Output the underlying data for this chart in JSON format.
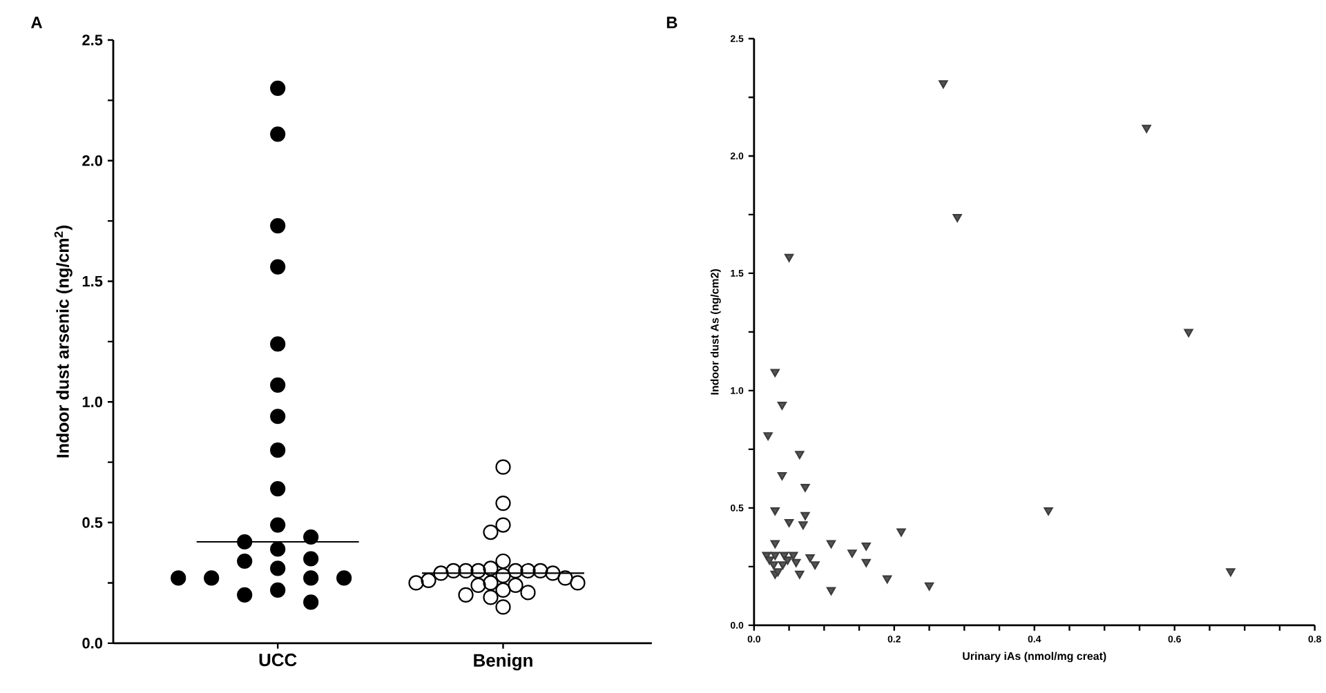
{
  "chart_data": [
    {
      "type": "scatter",
      "title": "A",
      "ylabel": "Indoor dust arsenic (ng/cm$^{2}$)",
      "categories": [
        "UCC",
        "Benign"
      ],
      "ylim": [
        0,
        2.5
      ],
      "yticks": [
        {
          "value": 0,
          "label": "0.0"
        },
        {
          "value": 0.25,
          "label": null
        },
        {
          "value": 0.5,
          "label": "0.5"
        },
        {
          "value": 0.75,
          "label": null
        },
        {
          "value": 1.0,
          "label": "1.0"
        },
        {
          "value": 1.25,
          "label": null
        },
        {
          "value": 1.5,
          "label": "1.5"
        },
        {
          "value": 1.75,
          "label": null
        },
        {
          "value": 2.0,
          "label": "2.0"
        },
        {
          "value": 2.25,
          "label": null
        },
        {
          "value": 2.5,
          "label": "2.5"
        }
      ],
      "series": [
        {
          "type": "scatter",
          "color": "#000000",
          "marker": "circle",
          "x": [
            "UCC",
            "UCC",
            "UCC",
            "UCC",
            "UCC",
            "UCC",
            "UCC",
            "UCC",
            "UCC",
            "UCC",
            "UCC",
            "UCC",
            "UCC",
            "UCC",
            "UCC",
            "UCC",
            "UCC",
            "UCC",
            "UCC",
            "UCC",
            "UCC",
            "UCC",
            "UCC"
          ],
          "values": [
            2.3,
            2.11,
            1.73,
            1.56,
            1.24,
            1.07,
            0.94,
            0.8,
            0.64,
            0.49,
            0.42,
            0.44,
            0.39,
            0.35,
            0.34,
            0.31,
            0.27,
            0.27,
            0.27,
            0.27,
            0.22,
            0.2,
            0.17
          ]
        },
        {
          "type": "scatter",
          "color": "#000000",
          "marker": "open circle",
          "x": [
            "Benign",
            "Benign",
            "Benign",
            "Benign",
            "Benign",
            "Benign",
            "Benign",
            "Benign",
            "Benign",
            "Benign",
            "Benign",
            "Benign",
            "Benign",
            "Benign",
            "Benign",
            "Benign",
            "Benign",
            "Benign",
            "Benign",
            "Benign",
            "Benign",
            "Benign",
            "Benign",
            "Benign",
            "Benign",
            "Benign",
            "Benign"
          ],
          "values": [
            0.73,
            0.58,
            0.49,
            0.46,
            0.34,
            0.31,
            0.3,
            0.3,
            0.3,
            0.3,
            0.3,
            0.3,
            0.29,
            0.29,
            0.28,
            0.27,
            0.26,
            0.25,
            0.25,
            0.25,
            0.24,
            0.24,
            0.22,
            0.21,
            0.2,
            0.19,
            0.15
          ]
        }
      ],
      "ref_lines": [
        {
          "axis": "y",
          "value": 0.42,
          "color": "#000000"
        },
        {
          "axis": "y",
          "value": 0.29,
          "color": "#000000"
        }
      ]
    },
    {
      "type": "scatter",
      "title": "B",
      "xlabel": "Urinary iAs (nmol/mg creat)",
      "ylabel": "Indoor dust As (ng/cm2)",
      "xlim": [
        0,
        0.8
      ],
      "ylim": [
        0,
        2.5
      ],
      "xticks": [
        {
          "value": 0,
          "label": "0.0"
        },
        {
          "value": 0.05,
          "label": null
        },
        {
          "value": 0.1,
          "label": null
        },
        {
          "value": 0.15,
          "label": null
        },
        {
          "value": 0.2,
          "label": "0.2"
        },
        {
          "value": 0.25,
          "label": null
        },
        {
          "value": 0.3,
          "label": null
        },
        {
          "value": 0.35,
          "label": null
        },
        {
          "value": 0.4,
          "label": "0.4"
        },
        {
          "value": 0.45,
          "label": null
        },
        {
          "value": 0.5,
          "label": null
        },
        {
          "value": 0.55,
          "label": null
        },
        {
          "value": 0.6,
          "label": "0.6"
        },
        {
          "value": 0.65,
          "label": null
        },
        {
          "value": 0.7,
          "label": null
        },
        {
          "value": 0.75,
          "label": null
        },
        {
          "value": 0.8,
          "label": "0.8"
        }
      ],
      "yticks": [
        {
          "value": 0,
          "label": "0.0"
        },
        {
          "value": 0.25,
          "label": null
        },
        {
          "value": 0.5,
          "label": "0.5"
        },
        {
          "value": 0.75,
          "label": null
        },
        {
          "value": 1.0,
          "label": "1.0"
        },
        {
          "value": 1.25,
          "label": null
        },
        {
          "value": 1.5,
          "label": "1.5"
        },
        {
          "value": 1.75,
          "label": null
        },
        {
          "value": 2.0,
          "label": "2.0"
        },
        {
          "value": 2.25,
          "label": null
        },
        {
          "value": 2.5,
          "label": "2.5"
        }
      ],
      "color": "#555555",
      "marker": "triangle",
      "x": [
        0.27,
        0.56,
        0.29,
        0.05,
        0.62,
        0.03,
        0.04,
        0.02,
        0.065,
        0.04,
        0.073,
        0.03,
        0.05,
        0.073,
        0.07,
        0.42,
        0.21,
        0.11,
        0.16,
        0.14,
        0.16,
        0.19,
        0.25,
        0.11,
        0.68,
        0.03,
        0.018,
        0.03,
        0.043,
        0.056,
        0.08,
        0.087,
        0.028,
        0.041,
        0.06,
        0.03,
        0.065,
        0.048,
        0.022,
        0.034
      ],
      "values": [
        2.31,
        2.12,
        1.74,
        1.57,
        1.25,
        1.08,
        0.94,
        0.81,
        0.73,
        0.64,
        0.59,
        0.49,
        0.44,
        0.47,
        0.43,
        0.49,
        0.4,
        0.35,
        0.34,
        0.31,
        0.27,
        0.2,
        0.17,
        0.15,
        0.23,
        0.35,
        0.3,
        0.3,
        0.3,
        0.3,
        0.29,
        0.26,
        0.26,
        0.26,
        0.27,
        0.22,
        0.22,
        0.28,
        0.28,
        0.23
      ]
    }
  ]
}
